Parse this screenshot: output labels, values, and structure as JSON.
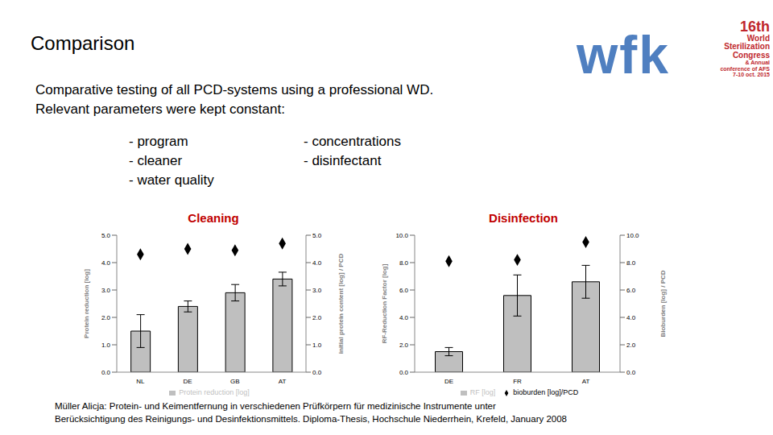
{
  "slide": {
    "title": "Comparison",
    "intro": [
      "Comparative testing of all PCD-systems using a professional WD.",
      "Relevant parameters were kept constant:"
    ],
    "params_left": [
      "- program",
      "- cleaner",
      "- water quality"
    ],
    "params_right": [
      "- concentrations",
      "- disinfectant"
    ],
    "logo": "wfk",
    "congress": [
      "16th",
      "World",
      "Sterilization",
      "Congress",
      "& Annual",
      "conference of AFS",
      "7-10 oct. 2015"
    ],
    "citation": [
      "Müller Alicja: Protein- und Keimentfernung in verschiedenen Prüfkörpern für medizinische Instrumente unter",
      "Berücksichtigung des Reinigungs- und Desinfektionsmittels. Diploma-Thesis, Hochschule Niederrhein, Krefeld, January 2008"
    ]
  },
  "chart_data": [
    {
      "type": "bar",
      "title": "Cleaning",
      "categories": [
        "NL",
        "DE",
        "GB",
        "AT"
      ],
      "y_label": "Protein reduction [log]",
      "y2_label": "initial protein content [log] / PCD",
      "ylim": [
        0,
        5
      ],
      "yticks": [
        {
          "value": 0,
          "label": "0.0"
        },
        {
          "value": 1,
          "label": "1.0"
        },
        {
          "value": 2,
          "label": "2.0"
        },
        {
          "value": 3,
          "label": "3.0"
        },
        {
          "value": 4,
          "label": "4.0"
        },
        {
          "value": 5,
          "label": "5.0"
        }
      ],
      "y2lim": [
        0,
        5
      ],
      "y2ticks": [
        {
          "value": 0,
          "label": "0.0"
        },
        {
          "value": 1,
          "label": "1.0"
        },
        {
          "value": 2,
          "label": "2.0"
        },
        {
          "value": 3,
          "label": "3.0"
        },
        {
          "value": 4,
          "label": "4.0"
        },
        {
          "value": 5,
          "label": "5.0"
        }
      ],
      "legend": "bottom",
      "grid": false,
      "series": [
        {
          "name": "Protein reduction [log]",
          "type": "bar",
          "color": "#bfbfbf",
          "values": [
            1.5,
            2.4,
            2.9,
            3.4
          ],
          "error": [
            0.6,
            0.2,
            0.3,
            0.25
          ]
        },
        {
          "type": "scatter",
          "axis": "y2",
          "marker": "diamond",
          "color": "#000000",
          "values": [
            4.3,
            4.5,
            4.45,
            4.7
          ]
        }
      ]
    },
    {
      "type": "bar",
      "title": "Disinfection",
      "categories": [
        "DE",
        "FR",
        "AT"
      ],
      "y_label": "RF-Reduction Factor [log]",
      "y2_label": "Bioburden [log] / PCD",
      "ylim": [
        0,
        10
      ],
      "yticks": [
        {
          "value": 0,
          "label": "0.0"
        },
        {
          "value": 2,
          "label": "2.0"
        },
        {
          "value": 4,
          "label": "4.0"
        },
        {
          "value": 6,
          "label": "6.0"
        },
        {
          "value": 8,
          "label": "8.0"
        },
        {
          "value": 10,
          "label": "10.0"
        }
      ],
      "y2lim": [
        0,
        10
      ],
      "y2ticks": [
        {
          "value": 0,
          "label": "0.0"
        },
        {
          "value": 2,
          "label": "2.0"
        },
        {
          "value": 4,
          "label": "4.0"
        },
        {
          "value": 6,
          "label": "6.0"
        },
        {
          "value": 8,
          "label": "8.0"
        },
        {
          "value": 10,
          "label": "10.0"
        }
      ],
      "legend": "bottom",
      "grid": false,
      "series": [
        {
          "name": "RF [log]",
          "type": "bar",
          "color": "#bfbfbf",
          "values": [
            1.5,
            5.6,
            6.6
          ],
          "error": [
            0.3,
            1.5,
            1.2
          ]
        },
        {
          "name": "bioburden [log]/PCD",
          "type": "scatter",
          "axis": "y2",
          "marker": "diamond",
          "color": "#000000",
          "values": [
            8.1,
            8.2,
            9.5
          ]
        }
      ]
    }
  ]
}
